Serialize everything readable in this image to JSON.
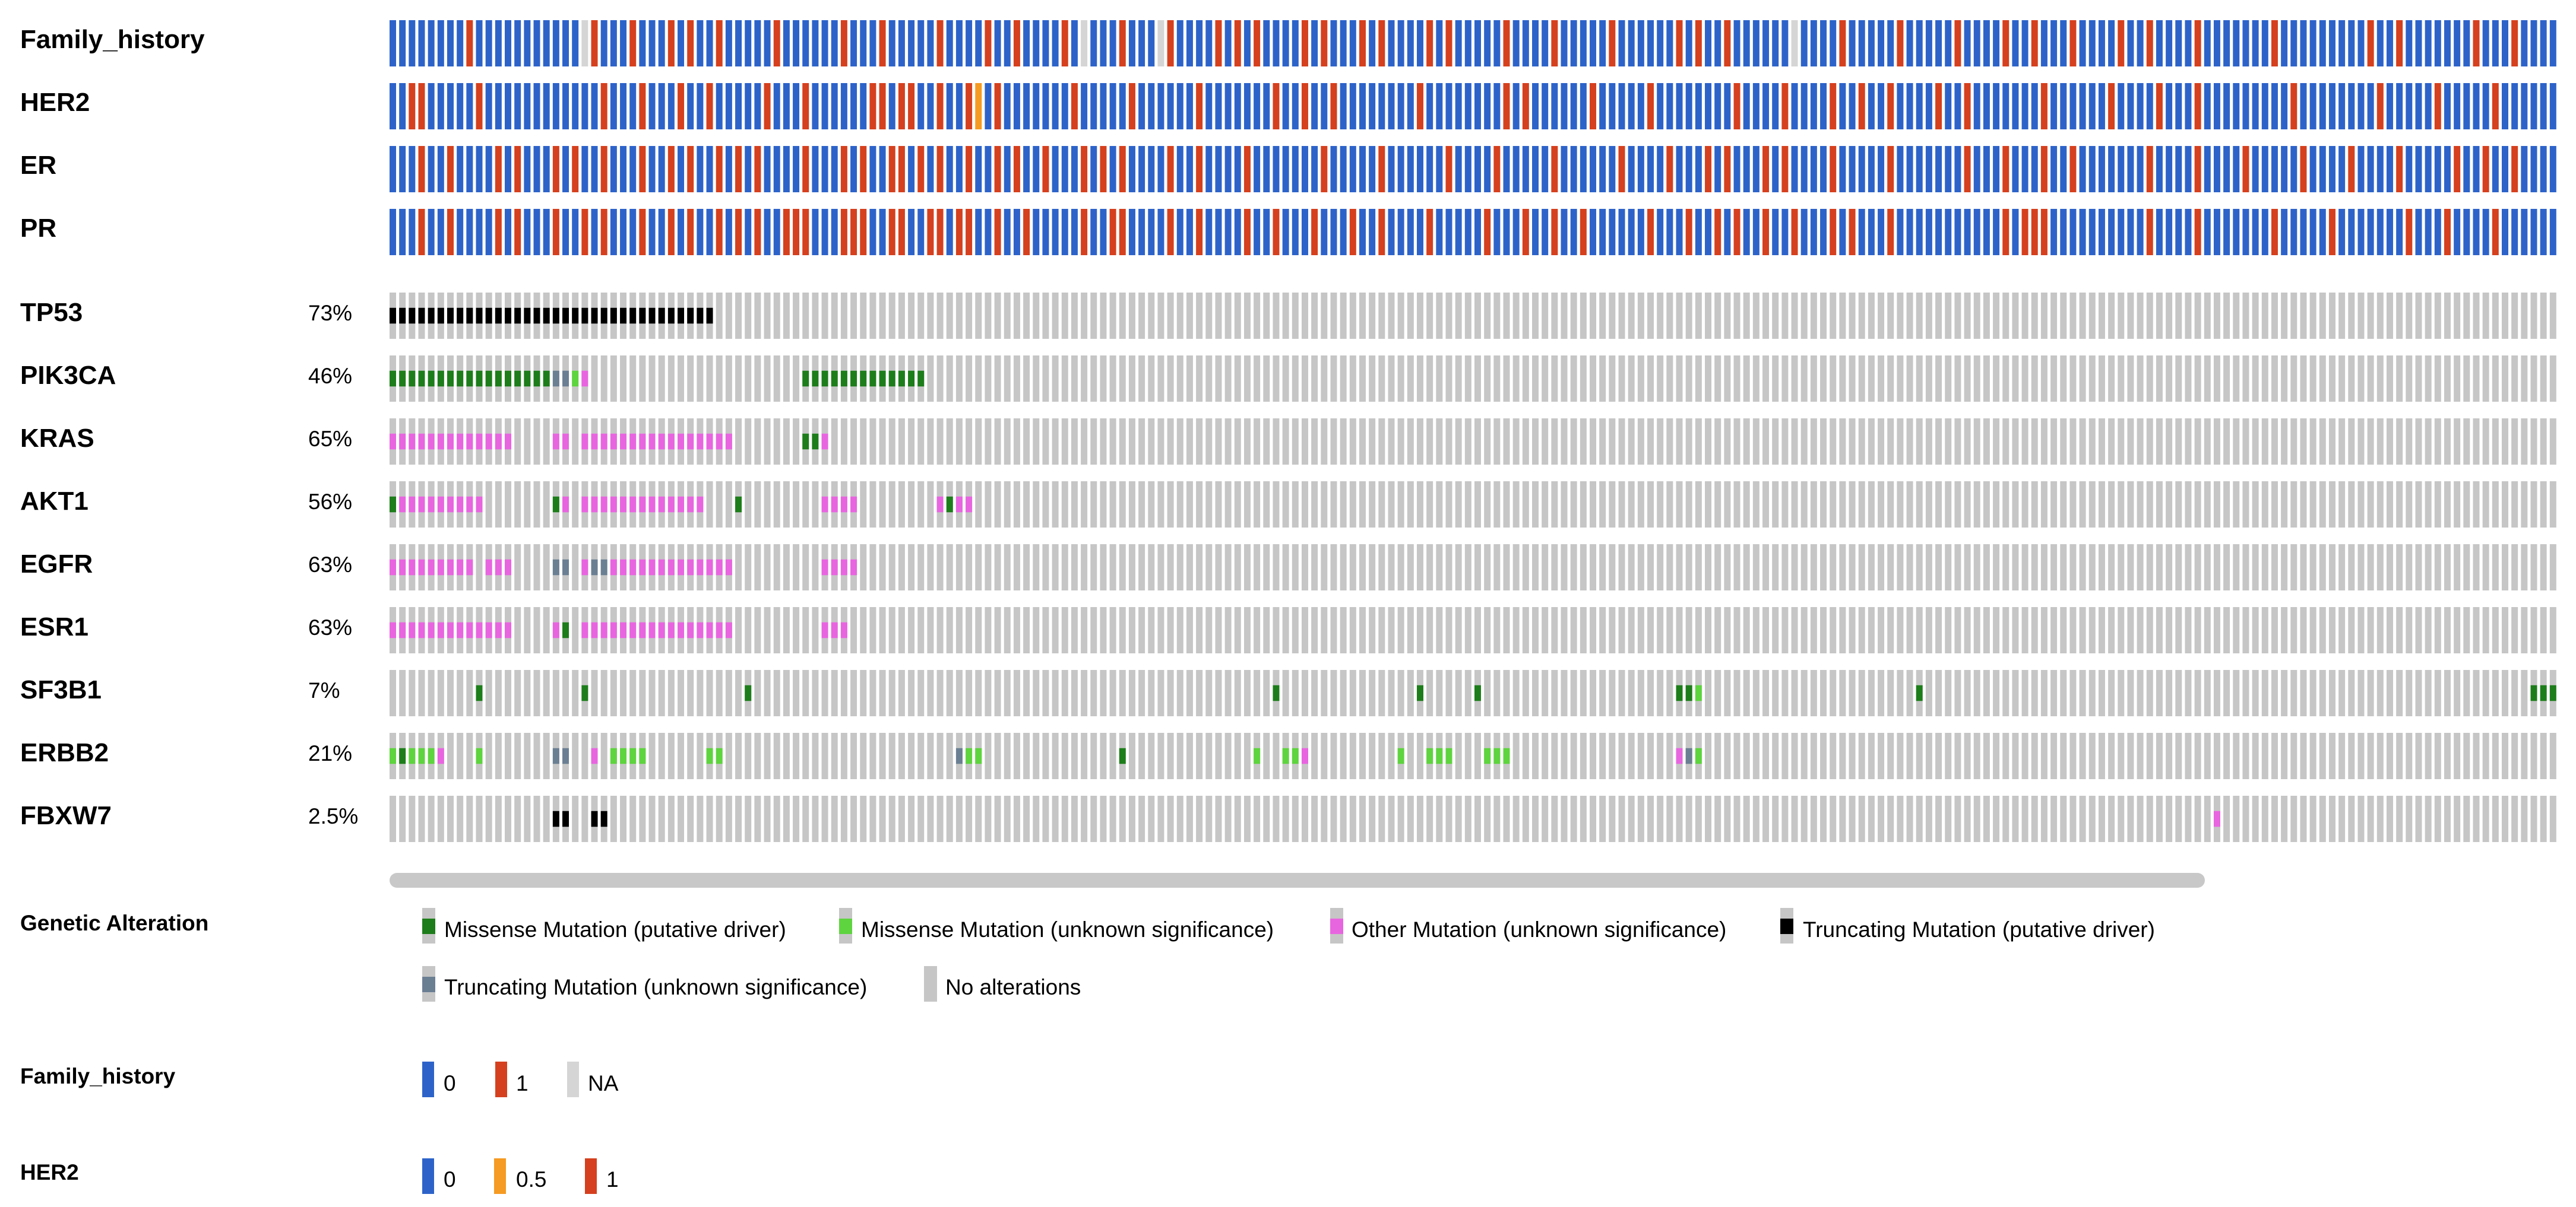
{
  "chart_data": {
    "type": "oncoprint",
    "n_samples": 226,
    "clinical_tracks": [
      {
        "label": "Family_history",
        "one_indices": [
          8,
          21,
          25,
          29,
          31,
          34,
          40,
          47,
          51,
          57,
          62,
          65,
          70,
          72,
          76,
          81,
          86,
          88,
          90,
          95,
          97,
          101,
          103,
          108,
          110,
          116,
          121,
          127,
          134,
          136,
          139,
          146,
          151,
          157,
          163,
          168,
          171,
          175,
          180,
          183,
          188,
          196,
          206,
          209,
          217,
          221
        ],
        "na_indices": [
          20,
          72,
          80,
          146
        ],
        "extra": {
          "1": [
            29,
            32,
            33,
            56,
            84,
            88,
            90,
            96,
            153,
            172,
            173,
            186,
            197,
            203,
            207,
            211,
            212,
            214,
            216,
            217,
            219
          ]
        }
      },
      {
        "label": "HER2",
        "one_indices": [
          2,
          3,
          9,
          22,
          26,
          30,
          33,
          39,
          43,
          50,
          51,
          53,
          54,
          57,
          60,
          63,
          71,
          77,
          84,
          92,
          95,
          98,
          107,
          116,
          118,
          125,
          131,
          140,
          145,
          150,
          153,
          156,
          161,
          164,
          172,
          179,
          184,
          188,
          198,
          207,
          213,
          219
        ],
        "half_indices": [
          61
        ]
      },
      {
        "label": "ER",
        "one_indices": [
          3,
          6,
          11,
          13,
          17,
          19,
          22,
          26,
          29,
          31,
          34,
          36,
          38,
          43,
          47,
          49,
          52,
          53,
          55,
          57,
          60,
          63,
          65,
          68,
          72,
          74,
          76,
          81,
          84,
          89,
          97,
          103,
          110,
          115,
          121,
          128,
          133,
          137,
          139,
          143,
          145,
          150,
          156,
          164,
          168,
          172,
          175,
          183,
          188,
          193,
          199,
          204,
          209,
          215,
          218,
          221
        ],
        "na_indices": []
      },
      {
        "label": "PR",
        "one_indices": [
          3,
          6,
          11,
          13,
          17,
          20,
          22,
          26,
          29,
          31,
          34,
          36,
          38,
          41,
          42,
          43,
          47,
          48,
          49,
          52,
          53,
          56,
          57,
          59,
          60,
          63,
          66,
          72,
          75,
          76,
          81,
          84,
          89,
          92,
          96,
          100,
          103,
          108,
          114,
          118,
          121,
          124,
          131,
          135,
          138,
          140,
          143,
          146,
          150,
          152,
          156,
          168,
          170,
          171,
          172,
          183,
          188,
          196,
          202,
          210,
          214,
          219
        ],
        "na_indices": []
      }
    ],
    "gene_tracks": [
      {
        "gene": "TP53",
        "percent": "73%"
      },
      {
        "gene": "PIK3CA",
        "percent": "46%"
      },
      {
        "gene": "KRAS",
        "percent": "65%"
      },
      {
        "gene": "AKT1",
        "percent": "56%"
      },
      {
        "gene": "EGFR",
        "percent": "63%"
      },
      {
        "gene": "ESR1",
        "percent": "63%"
      },
      {
        "gene": "SF3B1",
        "percent": "7%"
      },
      {
        "gene": "ERBB2",
        "percent": "21%"
      },
      {
        "gene": "FBXW7",
        "percent": "2.5%"
      }
    ],
    "alterations": {
      "TP53": [
        {
          "type": "trunc_driver",
          "samples": [
            0,
            32
          ]
        },
        {
          "type": "trunc_driver",
          "samples": [
            33,
            33
          ]
        }
      ],
      "PIK3CA": [
        {
          "type": "miss_driver",
          "samples": [
            0,
            16
          ]
        },
        {
          "type": "trunc_unknown",
          "samples": [
            17,
            18
          ]
        },
        {
          "type": "miss_unknown",
          "samples": [
            19,
            19
          ]
        },
        {
          "type": "other_unknown",
          "samples": [
            20,
            20
          ]
        },
        {
          "type": "miss_driver",
          "samples": [
            43,
            55
          ]
        }
      ],
      "KRAS": [
        {
          "type": "other_unknown",
          "samples": [
            0,
            12
          ]
        },
        {
          "type": "other_unknown",
          "samples": [
            17,
            18
          ]
        },
        {
          "type": "other_unknown",
          "samples": [
            20,
            35
          ]
        },
        {
          "type": "miss_driver",
          "samples": [
            43,
            44
          ]
        },
        {
          "type": "other_unknown",
          "samples": [
            45,
            45
          ]
        }
      ],
      "AKT1": [
        {
          "type": "miss_driver",
          "samples": [
            0,
            0
          ]
        },
        {
          "type": "other_unknown",
          "samples": [
            1,
            9
          ]
        },
        {
          "type": "miss_driver",
          "samples": [
            17,
            17
          ]
        },
        {
          "type": "other_unknown",
          "samples": [
            18,
            18
          ]
        },
        {
          "type": "other_unknown",
          "samples": [
            20,
            32
          ]
        },
        {
          "type": "miss_driver",
          "samples": [
            36,
            36
          ]
        },
        {
          "type": "other_unknown",
          "samples": [
            45,
            48
          ]
        },
        {
          "type": "other_unknown",
          "samples": [
            57,
            57
          ]
        },
        {
          "type": "miss_driver",
          "samples": [
            58,
            58
          ]
        },
        {
          "type": "other_unknown",
          "samples": [
            59,
            60
          ]
        }
      ],
      "EGFR": [
        {
          "type": "other_unknown",
          "samples": [
            0,
            8
          ]
        },
        {
          "type": "other_unknown",
          "samples": [
            10,
            12
          ]
        },
        {
          "type": "trunc_unknown",
          "samples": [
            17,
            18
          ]
        },
        {
          "type": "other_unknown",
          "samples": [
            20,
            20
          ]
        },
        {
          "type": "trunc_unknown",
          "samples": [
            21,
            22
          ]
        },
        {
          "type": "other_unknown",
          "samples": [
            23,
            35
          ]
        },
        {
          "type": "other_unknown",
          "samples": [
            45,
            48
          ]
        }
      ],
      "ESR1": [
        {
          "type": "other_unknown",
          "samples": [
            0,
            12
          ]
        },
        {
          "type": "other_unknown",
          "samples": [
            17,
            17
          ]
        },
        {
          "type": "miss_driver",
          "samples": [
            18,
            18
          ]
        },
        {
          "type": "other_unknown",
          "samples": [
            20,
            35
          ]
        },
        {
          "type": "other_unknown",
          "samples": [
            45,
            47
          ]
        }
      ],
      "SF3B1": [
        {
          "type": "miss_driver",
          "samples": [
            9,
            9
          ]
        },
        {
          "type": "miss_driver",
          "samples": [
            20,
            20
          ]
        },
        {
          "type": "miss_driver",
          "samples": [
            37,
            37
          ]
        },
        {
          "type": "miss_driver",
          "samples": [
            92,
            92
          ]
        },
        {
          "type": "miss_driver",
          "samples": [
            107,
            107
          ]
        },
        {
          "type": "miss_driver",
          "samples": [
            113,
            113
          ]
        },
        {
          "type": "miss_driver",
          "samples": [
            134,
            135
          ]
        },
        {
          "type": "miss_unknown",
          "samples": [
            136,
            136
          ]
        },
        {
          "type": "miss_driver",
          "samples": [
            159,
            159
          ]
        },
        {
          "type": "miss_driver",
          "samples": [
            223,
            225
          ]
        }
      ],
      "ERBB2": [
        {
          "type": "miss_unknown",
          "samples": [
            0,
            0
          ]
        },
        {
          "type": "miss_driver",
          "samples": [
            1,
            1
          ]
        },
        {
          "type": "miss_unknown",
          "samples": [
            2,
            4
          ]
        },
        {
          "type": "other_unknown",
          "samples": [
            5,
            5
          ]
        },
        {
          "type": "miss_unknown",
          "samples": [
            9,
            9
          ]
        },
        {
          "type": "trunc_unknown",
          "samples": [
            17,
            18
          ]
        },
        {
          "type": "other_unknown",
          "samples": [
            21,
            21
          ]
        },
        {
          "type": "miss_unknown",
          "samples": [
            23,
            26
          ]
        },
        {
          "type": "miss_unknown",
          "samples": [
            33,
            34
          ]
        },
        {
          "type": "trunc_unknown",
          "samples": [
            59,
            59
          ]
        },
        {
          "type": "miss_unknown",
          "samples": [
            60,
            61
          ]
        },
        {
          "type": "miss_driver",
          "samples": [
            76,
            76
          ]
        },
        {
          "type": "miss_unknown",
          "samples": [
            90,
            90
          ]
        },
        {
          "type": "miss_unknown",
          "samples": [
            93,
            94
          ]
        },
        {
          "type": "other_unknown",
          "samples": [
            95,
            95
          ]
        },
        {
          "type": "miss_unknown",
          "samples": [
            105,
            105
          ]
        },
        {
          "type": "miss_unknown",
          "samples": [
            108,
            110
          ]
        },
        {
          "type": "miss_unknown",
          "samples": [
            114,
            116
          ]
        },
        {
          "type": "other_unknown",
          "samples": [
            134,
            134
          ]
        },
        {
          "type": "trunc_unknown",
          "samples": [
            135,
            135
          ]
        },
        {
          "type": "miss_unknown",
          "samples": [
            136,
            136
          ]
        }
      ],
      "FBXW7": [
        {
          "type": "trunc_driver",
          "samples": [
            17,
            18
          ]
        },
        {
          "type": "trunc_driver",
          "samples": [
            21,
            22
          ]
        },
        {
          "type": "other_unknown",
          "samples": [
            190,
            190
          ]
        }
      ]
    },
    "colors": {
      "clin_0": "#2d63c9",
      "clin_1": "#d5401e",
      "clin_half": "#f59a22",
      "clin_na": "#d5d5d5",
      "no_alteration": "#c6c6c6",
      "miss_driver": "#1d7d1a",
      "miss_unknown": "#5ed43e",
      "other_unknown": "#e865e0",
      "trunc_driver": "#000000",
      "trunc_unknown": "#6b7f93"
    }
  },
  "legend": {
    "genetic": {
      "title": "Genetic Alteration",
      "items": [
        {
          "label": "Missense Mutation (putative driver)",
          "color": "#1d7d1a"
        },
        {
          "label": "Missense Mutation (unknown significance)",
          "color": "#5ed43e"
        },
        {
          "label": "Other Mutation (unknown significance)",
          "color": "#e865e0"
        },
        {
          "label": "Truncating Mutation (putative driver)",
          "color": "#000000"
        },
        {
          "label": "Truncating Mutation (unknown significance)",
          "color": "#6b7f93"
        },
        {
          "label": "No alterations",
          "color": "#c6c6c6"
        }
      ]
    },
    "family_history": {
      "title": "Family_history",
      "items": [
        {
          "label": "0",
          "color": "#2d63c9"
        },
        {
          "label": "1",
          "color": "#d5401e"
        },
        {
          "label": "NA",
          "color": "#d5d5d5"
        }
      ]
    },
    "her2": {
      "title": "HER2",
      "items": [
        {
          "label": "0",
          "color": "#2d63c9"
        },
        {
          "label": "0.5",
          "color": "#f59a22"
        },
        {
          "label": "1",
          "color": "#d5401e"
        }
      ]
    }
  }
}
